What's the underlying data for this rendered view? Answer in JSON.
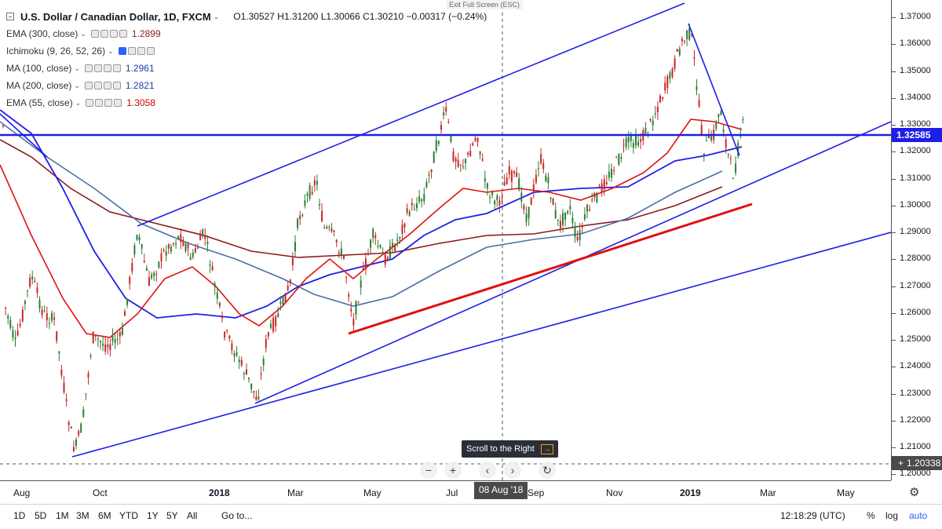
{
  "header": {
    "title": "U.S. Dollar / Canadian Dollar, 1D, FXCM",
    "ohlc": "O1.30527  H1.31200  L1.30066  C1.30210  −0.00317 (−0.24%)",
    "exit_fullscreen": "Exit Full Screen (ESC)"
  },
  "indicators": [
    {
      "name": "EMA (300, close)",
      "value": "1.2899",
      "color": "#8b1a1a"
    },
    {
      "name": "Ichimoku (9, 26, 52, 26)",
      "value": "",
      "color": "#2962ff"
    },
    {
      "name": "MA (100, close)",
      "value": "1.2961",
      "color": "#1f3ea8"
    },
    {
      "name": "MA (200, close)",
      "value": "1.2821",
      "color": "#1f3ea8"
    },
    {
      "name": "EMA (55, close)",
      "value": "1.3058",
      "color": "#cc0000"
    }
  ],
  "price_axis": {
    "ticks": [
      "1.37000",
      "1.36000",
      "1.35000",
      "1.34000",
      "1.33000",
      "1.32000",
      "1.31000",
      "1.30000",
      "1.29000",
      "1.28000",
      "1.27000",
      "1.26000",
      "1.25000",
      "1.24000",
      "1.23000",
      "1.22000",
      "1.21000",
      "1.20000"
    ],
    "current_price": "1.32585",
    "crosshair_price": "1.20338"
  },
  "time_axis": {
    "ticks": [
      {
        "label": "Aug",
        "bold": false
      },
      {
        "label": "Oct",
        "bold": false
      },
      {
        "label": "2018",
        "bold": true
      },
      {
        "label": "Mar",
        "bold": false
      },
      {
        "label": "May",
        "bold": false
      },
      {
        "label": "Jul",
        "bold": false
      },
      {
        "label": "Sep",
        "bold": false
      },
      {
        "label": "Nov",
        "bold": false
      },
      {
        "label": "2019",
        "bold": true
      },
      {
        "label": "Mar",
        "bold": false
      },
      {
        "label": "May",
        "bold": false
      }
    ],
    "crosshair_date": "08 Aug '18"
  },
  "scroll_tooltip": "Scroll to the Right",
  "nav_buttons": [
    "−",
    "+",
    "‹",
    "›",
    "↻"
  ],
  "bottom_bar": {
    "ranges": [
      "1D",
      "5D",
      "1M",
      "3M",
      "6M",
      "YTD",
      "1Y",
      "5Y",
      "All"
    ],
    "goto": "Go to...",
    "clock": "12:18:29 (UTC)",
    "percent": "%",
    "log": "log",
    "auto": "auto"
  },
  "colors": {
    "candle_up": "#2e7d32",
    "candle_down": "#c62828",
    "trendline": "#1e1ee8",
    "support_line": "#e01010",
    "ema55": "#e01010",
    "ema300": "#8b1a1a",
    "ma100": "#1e1ee8",
    "ma200": "#4a6fa5"
  }
}
